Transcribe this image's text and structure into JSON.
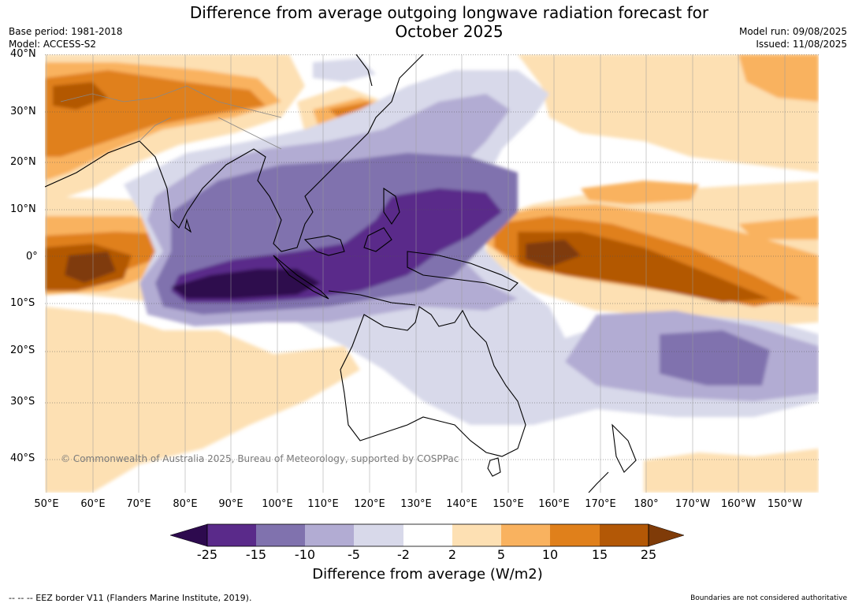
{
  "title_line1": "Difference from average outgoing longwave radiation forecast for",
  "title_line2": "October 2025",
  "base_period": "Base period: 1981-2018",
  "model": "Model: ACCESS-S2",
  "model_run": "Model run: 09/08/2025",
  "issued": "Issued: 11/08/2025",
  "copyright": "© Commonwealth of Australia 2025, Bureau of Meteorology, supported by COSPPac",
  "lat_labels": [
    "40°N",
    "30°N",
    "20°N",
    "10°N",
    "0°",
    "10°S",
    "20°S",
    "30°S",
    "40°S"
  ],
  "lon_labels": [
    "50°E",
    "60°E",
    "70°E",
    "80°E",
    "90°E",
    "100°E",
    "110°E",
    "120°E",
    "130°E",
    "140°E",
    "150°E",
    "160°E",
    "170°E",
    "180°",
    "170°W",
    "160°W",
    "150°W"
  ],
  "colorbar": {
    "label": "Difference from average (W/m2)",
    "ticks": [
      "-25",
      "-15",
      "-10",
      "-5",
      "-2",
      "2",
      "5",
      "10",
      "15",
      "25"
    ],
    "colors": [
      "#2d0a4e",
      "#5a2a8a",
      "#8072ae",
      "#b2acd3",
      "#d8d9ea",
      "#ffffff",
      "#fde0b3",
      "#f9b25f",
      "#e0801b",
      "#b35806",
      "#7f3b08"
    ]
  },
  "footer_left": "--  --  -- EEZ border V11 (Flanders Marine Institute, 2019).",
  "footer_right": "Boundaries are not considered authoritative"
}
